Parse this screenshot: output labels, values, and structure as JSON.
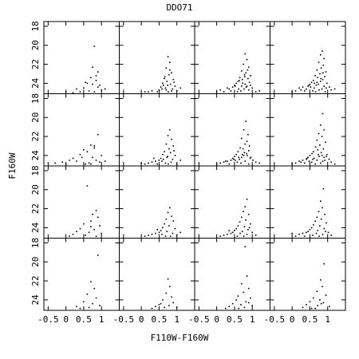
{
  "title": "DDO71",
  "x_label": "F110W-F160W",
  "y_label": "F160W",
  "chart_data": [
    {
      "type": "scatter",
      "color": "#000000",
      "xlim": [
        -0.62,
        1.5
      ],
      "ylim": [
        25.1,
        17.5
      ],
      "xticks": [
        -0.5,
        0,
        0.5,
        1
      ],
      "yticks": [
        18,
        20,
        22,
        24
      ],
      "x": [
        0.8,
        0.75,
        0.9,
        0.7,
        0.85,
        0.6,
        0.95,
        0.5,
        0.3,
        0.8,
        1.0,
        0.65,
        0.2,
        0.9,
        0.75,
        0.4,
        1.1,
        0.55,
        0.0,
        0.85
      ],
      "y": [
        20.1,
        22.3,
        22.8,
        23.4,
        23.7,
        24.0,
        24.2,
        24.5,
        24.6,
        24.9,
        24.7,
        24.8,
        25.0,
        24.4,
        24.1,
        24.9,
        24.6,
        23.9,
        24.9,
        23.2
      ]
    },
    {
      "type": "scatter",
      "color": "#000000",
      "xlim": [
        -0.62,
        1.5
      ],
      "ylim": [
        25.1,
        17.5
      ],
      "xticks": [
        -0.5,
        0,
        0.5,
        1
      ],
      "yticks": [
        18,
        20,
        22,
        24
      ],
      "x": [
        0.75,
        0.8,
        0.7,
        0.85,
        0.78,
        0.65,
        0.9,
        0.72,
        0.6,
        0.82,
        0.95,
        0.55,
        0.68,
        0.88,
        0.5,
        0.3,
        0.1,
        0.76,
        0.62,
        1.0,
        0.45,
        0.8,
        0.7,
        0.92,
        0.58,
        0.2,
        0.85,
        1.1,
        0.66,
        0.74
      ],
      "y": [
        21.2,
        21.8,
        22.4,
        22.9,
        23.1,
        23.5,
        23.6,
        23.8,
        24.0,
        24.1,
        24.3,
        24.4,
        24.5,
        24.6,
        24.7,
        24.8,
        24.9,
        24.9,
        24.2,
        24.8,
        24.9,
        22.6,
        24.7,
        23.9,
        24.6,
        24.9,
        24.8,
        24.5,
        23.3,
        24.2
      ]
    },
    {
      "type": "scatter",
      "color": "#000000",
      "xlim": [
        -0.62,
        1.5
      ],
      "ylim": [
        25.1,
        17.5
      ],
      "xticks": [
        -0.5,
        0,
        0.5,
        1
      ],
      "yticks": [
        18,
        20,
        22,
        24
      ],
      "x": [
        0.8,
        0.85,
        0.75,
        0.9,
        0.7,
        0.82,
        0.78,
        0.95,
        0.65,
        0.88,
        0.72,
        0.6,
        0.92,
        0.55,
        0.8,
        0.5,
        0.7,
        0.85,
        0.45,
        1.0,
        0.3,
        0.62,
        0.77,
        0.1,
        0.9,
        0.4,
        0.68,
        1.1,
        0.2,
        0.58,
        0.83,
        0.73,
        0.95,
        0.35,
        0.64,
        0.0,
        1.2,
        0.87,
        0.52,
        0.79
      ],
      "y": [
        20.9,
        21.5,
        22.0,
        22.3,
        22.7,
        22.9,
        23.1,
        23.2,
        23.4,
        23.5,
        23.6,
        23.8,
        23.9,
        24.0,
        24.1,
        24.2,
        24.3,
        24.3,
        24.4,
        24.5,
        24.5,
        24.6,
        24.6,
        24.7,
        24.7,
        24.8,
        24.8,
        24.9,
        24.9,
        24.9,
        24.4,
        24.0,
        24.2,
        24.6,
        23.7,
        24.9,
        24.8,
        22.6,
        24.3,
        23.3
      ]
    },
    {
      "type": "scatter",
      "color": "#000000",
      "xlim": [
        -0.62,
        1.5
      ],
      "ylim": [
        25.1,
        17.5
      ],
      "xticks": [
        -0.5,
        0,
        0.5,
        1
      ],
      "yticks": [
        18,
        20,
        22,
        24
      ],
      "x": [
        0.85,
        0.8,
        0.9,
        0.75,
        0.88,
        0.82,
        0.7,
        0.95,
        0.78,
        0.65,
        0.92,
        0.72,
        0.86,
        0.6,
        0.8,
        0.55,
        0.98,
        0.5,
        0.74,
        0.68,
        0.45,
        0.9,
        0.3,
        1.05,
        0.62,
        0.2,
        0.84,
        0.4,
        0.76,
        1.1,
        0.1,
        0.58,
        0.35,
        0.93,
        0.66,
        0.0,
        1.2,
        0.81,
        0.52,
        0.7,
        0.25,
        0.87,
        0.48,
        0.96,
        0.63
      ],
      "y": [
        20.6,
        21.0,
        21.4,
        21.8,
        22.1,
        22.4,
        22.6,
        22.8,
        23.0,
        23.2,
        23.3,
        23.4,
        23.6,
        23.7,
        23.8,
        23.9,
        24.0,
        24.1,
        24.1,
        24.2,
        24.3,
        24.3,
        24.4,
        24.4,
        24.5,
        24.5,
        24.6,
        24.6,
        24.7,
        24.7,
        24.8,
        24.8,
        24.8,
        24.9,
        24.9,
        24.9,
        24.6,
        23.5,
        24.4,
        23.9,
        24.7,
        22.9,
        24.2,
        24.5,
        24.0
      ]
    },
    {
      "type": "scatter",
      "color": "#000000",
      "xlim": [
        -0.62,
        1.5
      ],
      "ylim": [
        25.1,
        17.5
      ],
      "xticks": [
        -0.5,
        0,
        0.5,
        1
      ],
      "yticks": [
        18,
        20,
        22,
        24
      ],
      "x": [
        0.9,
        0.7,
        0.8,
        0.5,
        0.6,
        0.4,
        1.0,
        0.75,
        0.2,
        0.85,
        0.1,
        0.3,
        0.95,
        0.65,
        -0.3,
        0.55,
        0.0,
        0.8,
        1.1,
        0.45,
        -0.1,
        0.7
      ],
      "y": [
        21.8,
        22.9,
        23.2,
        23.4,
        23.6,
        23.9,
        24.0,
        24.2,
        24.3,
        24.5,
        24.5,
        24.6,
        24.7,
        24.8,
        24.8,
        24.9,
        24.9,
        23.0,
        24.6,
        24.2,
        24.7,
        24.9
      ]
    },
    {
      "type": "scatter",
      "color": "#000000",
      "xlim": [
        -0.62,
        1.5
      ],
      "ylim": [
        25.1,
        17.5
      ],
      "xticks": [
        -0.5,
        0,
        0.5,
        1
      ],
      "yticks": [
        18,
        20,
        22,
        24
      ],
      "x": [
        0.8,
        0.75,
        0.85,
        0.7,
        0.9,
        0.78,
        0.65,
        0.82,
        0.6,
        0.95,
        0.72,
        0.55,
        0.88,
        0.5,
        0.4,
        0.3,
        0.2,
        0.68,
        1.0,
        0.76,
        0.1,
        0.58,
        0.84,
        1.1,
        0.45,
        0.0,
        0.92,
        0.62,
        0.74,
        0.35
      ],
      "y": [
        21.3,
        21.9,
        22.3,
        22.8,
        23.0,
        23.3,
        23.6,
        23.7,
        23.9,
        24.0,
        24.2,
        24.3,
        24.4,
        24.5,
        24.6,
        24.7,
        24.8,
        24.8,
        24.9,
        24.9,
        24.9,
        24.6,
        24.7,
        24.5,
        24.9,
        24.8,
        23.5,
        24.4,
        24.1,
        24.3
      ]
    },
    {
      "type": "scatter",
      "color": "#000000",
      "xlim": [
        -0.62,
        1.5
      ],
      "ylim": [
        25.1,
        17.5
      ],
      "xticks": [
        -0.5,
        0,
        0.5,
        1
      ],
      "yticks": [
        18,
        20,
        22,
        24
      ],
      "x": [
        0.82,
        0.76,
        0.88,
        0.7,
        0.85,
        0.8,
        0.92,
        0.66,
        0.74,
        0.9,
        0.6,
        0.78,
        0.55,
        0.86,
        0.5,
        0.7,
        0.96,
        0.45,
        0.64,
        0.4,
        1.02,
        0.3,
        0.8,
        0.2,
        0.58,
        1.1,
        0.1,
        0.68,
        0.35,
        0.9,
        0.0,
        0.52,
        0.76,
        0.25,
        0.84,
        1.2,
        0.62,
        0.48,
        0.94,
        0.72
      ],
      "y": [
        20.4,
        21.3,
        21.8,
        22.2,
        22.5,
        22.8,
        23.0,
        23.2,
        23.3,
        23.5,
        23.6,
        23.7,
        23.9,
        24.0,
        24.1,
        24.2,
        24.2,
        24.3,
        24.4,
        24.5,
        24.5,
        24.6,
        24.6,
        24.7,
        24.7,
        24.7,
        24.8,
        24.8,
        24.9,
        24.9,
        24.9,
        24.5,
        24.0,
        24.6,
        23.8,
        24.8,
        24.2,
        24.4,
        24.3,
        23.9
      ]
    },
    {
      "type": "scatter",
      "color": "#000000",
      "xlim": [
        -0.62,
        1.5
      ],
      "ylim": [
        25.1,
        17.5
      ],
      "xticks": [
        -0.5,
        0,
        0.5,
        1
      ],
      "yticks": [
        18,
        20,
        22,
        24
      ],
      "x": [
        0.86,
        0.8,
        0.9,
        0.75,
        0.84,
        0.7,
        0.94,
        0.78,
        0.66,
        0.88,
        0.72,
        0.6,
        0.82,
        0.56,
        0.98,
        0.5,
        0.76,
        0.45,
        0.9,
        0.62,
        0.4,
        1.04,
        0.3,
        0.7,
        0.2,
        0.86,
        0.55,
        1.1,
        0.1,
        0.35,
        0.8,
        0.0,
        0.65,
        1.2,
        0.48,
        0.92,
        0.25,
        0.74,
        0.58,
        0.84,
        0.42,
        0.96
      ],
      "y": [
        19.6,
        20.8,
        21.3,
        21.7,
        22.0,
        22.4,
        22.6,
        22.9,
        23.1,
        23.3,
        23.4,
        23.6,
        23.7,
        23.8,
        23.9,
        24.0,
        24.1,
        24.2,
        24.2,
        24.3,
        24.4,
        24.4,
        24.5,
        24.5,
        24.6,
        24.6,
        24.7,
        24.7,
        24.8,
        24.8,
        24.8,
        24.9,
        24.9,
        24.9,
        24.6,
        24.5,
        24.7,
        23.9,
        24.4,
        24.0,
        24.3,
        24.1
      ]
    },
    {
      "type": "scatter",
      "color": "#000000",
      "xlim": [
        -0.62,
        1.5
      ],
      "ylim": [
        25.1,
        17.5
      ],
      "xticks": [
        -0.5,
        0,
        0.5,
        1
      ],
      "yticks": [
        18,
        20,
        22,
        24
      ],
      "x": [
        0.6,
        0.85,
        0.75,
        0.9,
        0.7,
        0.5,
        0.95,
        0.4,
        0.8,
        0.3,
        0.65,
        1.0,
        0.2,
        0.55,
        0.85,
        0.1,
        0.7
      ],
      "y": [
        19.6,
        22.2,
        22.6,
        22.9,
        23.3,
        23.6,
        23.8,
        24.1,
        24.2,
        24.4,
        24.5,
        24.6,
        24.7,
        24.8,
        24.9,
        24.9,
        23.9
      ]
    },
    {
      "type": "scatter",
      "color": "#000000",
      "xlim": [
        -0.62,
        1.5
      ],
      "ylim": [
        25.1,
        17.5
      ],
      "xticks": [
        -0.5,
        0,
        0.5,
        1
      ],
      "yticks": [
        18,
        20,
        22,
        24
      ],
      "x": [
        0.8,
        0.75,
        0.85,
        0.7,
        0.9,
        0.65,
        0.78,
        0.6,
        0.95,
        0.55,
        0.72,
        0.5,
        0.88,
        0.4,
        0.3,
        1.0,
        0.2,
        0.68,
        0.82,
        0.1,
        1.1,
        0.58,
        0.45
      ],
      "y": [
        21.9,
        22.4,
        22.8,
        23.1,
        23.3,
        23.6,
        23.8,
        24.0,
        24.1,
        24.3,
        24.4,
        24.5,
        24.6,
        24.6,
        24.7,
        24.8,
        24.8,
        24.9,
        24.9,
        24.9,
        24.5,
        24.7,
        24.2
      ]
    },
    {
      "type": "scatter",
      "color": "#000000",
      "xlim": [
        -0.62,
        1.5
      ],
      "ylim": [
        25.1,
        17.5
      ],
      "xticks": [
        -0.5,
        0,
        0.5,
        1
      ],
      "yticks": [
        18,
        20,
        22,
        24
      ],
      "x": [
        0.85,
        0.8,
        0.75,
        0.9,
        0.7,
        0.82,
        0.65,
        0.95,
        0.6,
        0.78,
        0.55,
        0.88,
        0.5,
        0.72,
        0.45,
        1.0,
        0.4,
        0.66,
        0.3,
        0.85,
        0.2,
        1.1,
        0.58,
        0.1,
        0.76,
        0.35,
        0.92
      ],
      "y": [
        21.0,
        21.8,
        22.3,
        22.6,
        22.9,
        23.2,
        23.4,
        23.6,
        23.8,
        23.9,
        24.1,
        24.2,
        24.3,
        24.4,
        24.5,
        24.5,
        24.6,
        24.6,
        24.7,
        24.7,
        24.8,
        24.8,
        24.9,
        24.9,
        24.9,
        24.3,
        24.0
      ]
    },
    {
      "type": "scatter",
      "color": "#000000",
      "xlim": [
        -0.62,
        1.5
      ],
      "ylim": [
        25.1,
        17.5
      ],
      "xticks": [
        -0.5,
        0,
        0.5,
        1
      ],
      "yticks": [
        18,
        20,
        22,
        24
      ],
      "x": [
        0.88,
        0.8,
        0.85,
        0.75,
        0.92,
        0.7,
        0.82,
        0.65,
        0.96,
        0.6,
        0.78,
        0.55,
        0.9,
        0.5,
        0.72,
        0.45,
        1.02,
        0.4,
        0.68,
        0.3,
        0.86,
        0.2,
        1.1,
        0.58,
        0.1,
        0.76,
        0.35,
        0.94,
        0.0
      ],
      "y": [
        19.9,
        21.2,
        21.9,
        22.3,
        22.6,
        22.9,
        23.1,
        23.3,
        23.5,
        23.7,
        23.8,
        24.0,
        24.1,
        24.2,
        24.3,
        24.4,
        24.5,
        24.5,
        24.6,
        24.6,
        24.7,
        24.7,
        24.8,
        24.8,
        24.9,
        24.9,
        24.9,
        24.4,
        24.6
      ]
    },
    {
      "type": "scatter",
      "color": "#000000",
      "xlim": [
        -0.62,
        1.5
      ],
      "ylim": [
        25.1,
        17.5
      ],
      "xticks": [
        -0.5,
        0,
        0.5,
        1
      ],
      "yticks": [
        18,
        20,
        22,
        24
      ],
      "x": [
        0.9,
        0.7,
        0.8,
        0.6,
        0.85,
        0.5,
        0.75,
        0.95,
        0.65,
        0.4,
        0.3
      ],
      "y": [
        19.3,
        22.1,
        22.8,
        23.4,
        23.8,
        24.2,
        24.4,
        24.6,
        24.8,
        24.9,
        24.7
      ]
    },
    {
      "type": "scatter",
      "color": "#000000",
      "xlim": [
        -0.62,
        1.5
      ],
      "ylim": [
        25.1,
        17.5
      ],
      "xticks": [
        -0.5,
        0,
        0.5,
        1
      ],
      "yticks": [
        18,
        20,
        22,
        24
      ],
      "x": [
        0.75,
        0.8,
        0.7,
        0.85,
        0.6,
        0.9,
        0.5,
        0.78,
        0.4,
        0.65,
        0.3,
        1.0,
        0.55
      ],
      "y": [
        21.8,
        22.6,
        23.3,
        23.7,
        24.0,
        24.3,
        24.5,
        24.6,
        24.7,
        24.8,
        24.9,
        24.8,
        24.4
      ]
    },
    {
      "type": "scatter",
      "color": "#000000",
      "xlim": [
        -0.62,
        1.5
      ],
      "ylim": [
        25.1,
        17.5
      ],
      "xticks": [
        -0.5,
        0,
        0.5,
        1
      ],
      "yticks": [
        18,
        20,
        22,
        24
      ],
      "x": [
        0.8,
        0.85,
        0.7,
        0.9,
        0.75,
        0.6,
        0.95,
        0.55,
        0.82,
        0.45,
        0.68,
        1.0,
        0.35,
        0.78,
        0.25,
        0.62,
        0.9
      ],
      "y": [
        18.4,
        21.5,
        22.3,
        22.8,
        23.2,
        23.6,
        23.8,
        24.0,
        24.2,
        24.4,
        24.5,
        24.6,
        24.7,
        24.8,
        24.9,
        24.9,
        24.3
      ]
    },
    {
      "type": "scatter",
      "color": "#000000",
      "xlim": [
        -0.62,
        1.5
      ],
      "ylim": [
        25.1,
        17.5
      ],
      "xticks": [
        -0.5,
        0,
        0.5,
        1
      ],
      "yticks": [
        18,
        20,
        22,
        24
      ],
      "x": [
        0.9,
        0.8,
        0.85,
        0.7,
        0.95,
        0.6,
        0.78,
        0.5,
        0.88,
        0.4,
        0.72,
        1.05,
        0.3,
        0.65,
        0.55,
        0.82
      ],
      "y": [
        20.2,
        21.9,
        22.6,
        23.1,
        23.5,
        23.8,
        24.0,
        24.2,
        24.3,
        24.5,
        24.6,
        24.7,
        24.8,
        24.9,
        24.9,
        24.4
      ]
    }
  ]
}
